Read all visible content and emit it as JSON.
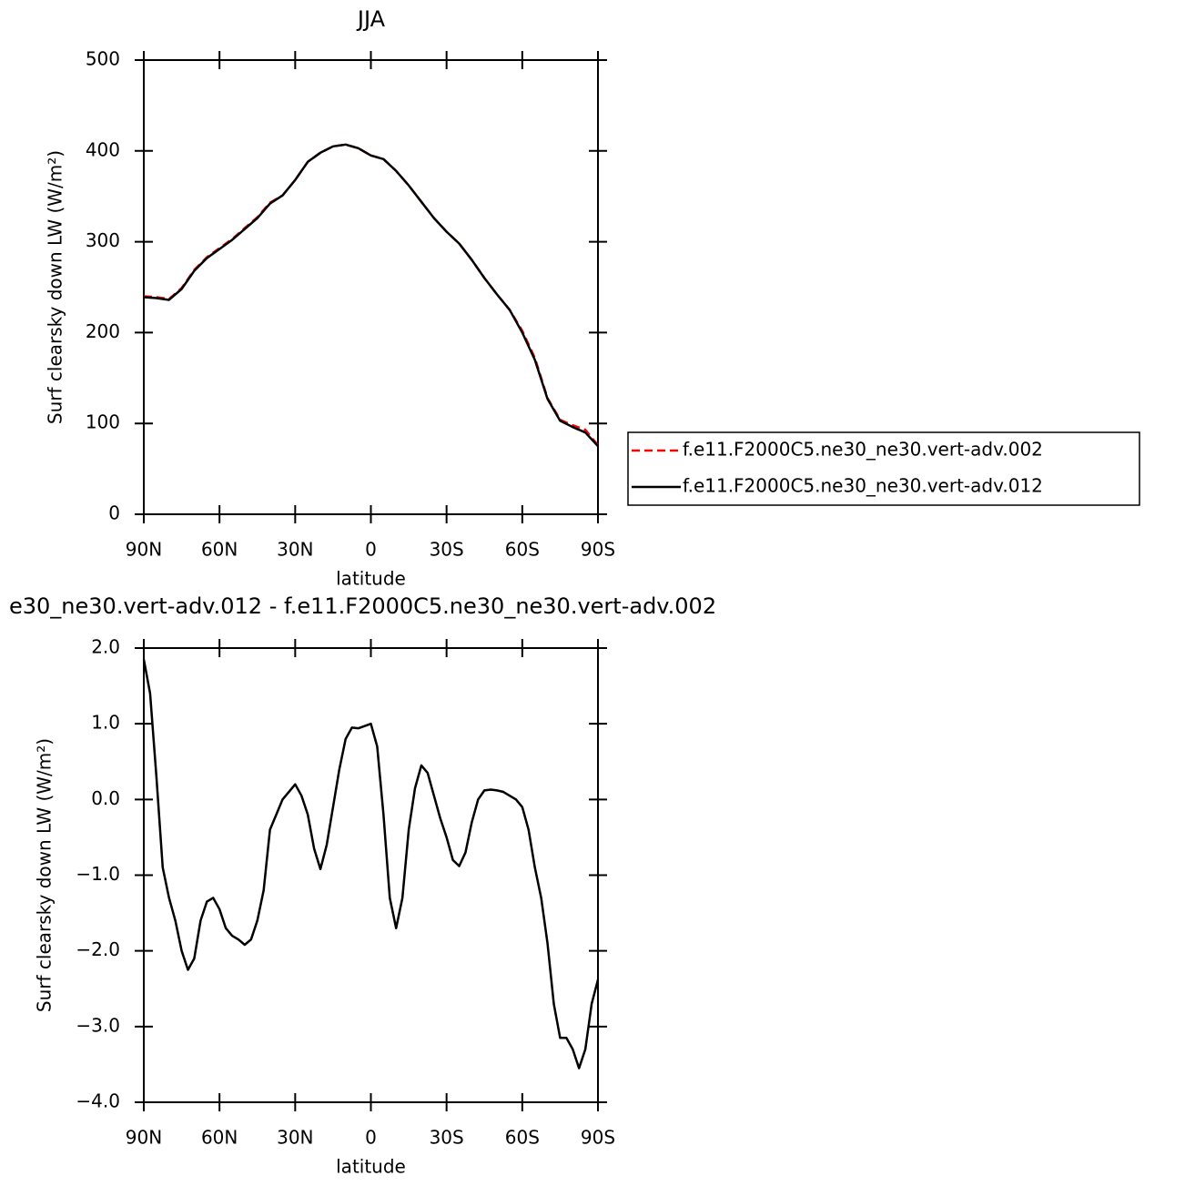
{
  "chart_data": [
    {
      "type": "line",
      "title": "JJA",
      "xlabel": "latitude",
      "ylabel": "Surf clearsky down LW (W/m²)",
      "x": [
        90,
        85,
        80,
        75,
        70,
        65,
        60,
        55,
        50,
        45,
        40,
        35,
        30,
        25,
        20,
        15,
        10,
        5,
        0,
        -5,
        -10,
        -15,
        -20,
        -25,
        -30,
        -35,
        -40,
        -45,
        -50,
        -55,
        -60,
        -65,
        -70,
        -75,
        -80,
        -85,
        -90
      ],
      "xlim": [
        90,
        -90
      ],
      "xticks": [
        {
          "value": 90,
          "label": "90N"
        },
        {
          "value": 60,
          "label": "60N"
        },
        {
          "value": 30,
          "label": "30N"
        },
        0,
        {
          "value": -30,
          "label": "30S"
        },
        {
          "value": -60,
          "label": "60S"
        },
        {
          "value": -90,
          "label": "90S"
        }
      ],
      "ylim": [
        0,
        500
      ],
      "yticks": [
        0,
        100,
        200,
        300,
        400,
        500
      ],
      "legend": "right",
      "series": [
        {
          "name": "f.e11.F2000C5.ne30_ne30.vert-adv.002",
          "color": "#ff0000",
          "style": "dashed",
          "values": [
            240,
            239,
            237,
            249,
            269,
            283,
            293,
            303,
            315,
            327,
            343,
            351,
            368,
            388,
            398,
            405,
            407,
            403,
            395,
            391,
            378,
            362,
            344,
            326,
            311,
            298,
            280,
            260,
            242,
            225,
            202,
            172,
            128,
            104,
            98,
            93,
            76
          ]
        },
        {
          "name": "f.e11.F2000C5.ne30_ne30.vert-adv.012",
          "color": "#000000",
          "style": "solid",
          "values": [
            239,
            238,
            236,
            248,
            268,
            282,
            292,
            302,
            314,
            326,
            342,
            351,
            368,
            388,
            398,
            405,
            407,
            403,
            395,
            391,
            378,
            362,
            344,
            326,
            311,
            298,
            280,
            260,
            242,
            225,
            200,
            170,
            127,
            103,
            96,
            90,
            75
          ]
        }
      ]
    },
    {
      "type": "line",
      "title": "e30_ne30.vert-adv.012 - f.e11.F2000C5.ne30_ne30.vert-adv.002",
      "xlabel": "latitude",
      "ylabel": "Surf clearsky down LW (W/m²)",
      "x": [
        90,
        87.5,
        85,
        82.5,
        80,
        77.5,
        75,
        72.5,
        70,
        67.5,
        65,
        62.5,
        60,
        57.5,
        55,
        52.5,
        50,
        47.5,
        45,
        42.5,
        40,
        37.5,
        35,
        32.5,
        30,
        27.5,
        25,
        22.5,
        20,
        17.5,
        15,
        12.5,
        10,
        7.5,
        5,
        2.5,
        0,
        -2.5,
        -5,
        -7.5,
        -10,
        -12.5,
        -15,
        -17.5,
        -20,
        -22.5,
        -25,
        -27.5,
        -30,
        -32.5,
        -35,
        -37.5,
        -40,
        -42.5,
        -45,
        -47.5,
        -50,
        -52.5,
        -55,
        -57.5,
        -60,
        -62.5,
        -65,
        -67.5,
        -70,
        -72.5,
        -75,
        -77.5,
        -80,
        -82.5,
        -85,
        -87.5,
        -90
      ],
      "xlim": [
        90,
        -90
      ],
      "xticks": [
        {
          "value": 90,
          "label": "90N"
        },
        {
          "value": 60,
          "label": "60N"
        },
        {
          "value": 30,
          "label": "30N"
        },
        0,
        {
          "value": -30,
          "label": "30S"
        },
        {
          "value": -60,
          "label": "60S"
        },
        {
          "value": -90,
          "label": "90S"
        }
      ],
      "ylim": [
        -4,
        2
      ],
      "yticks": [
        {
          "value": -4,
          "label": "−4.0"
        },
        {
          "value": -3,
          "label": "−3.0"
        },
        {
          "value": -2,
          "label": "−2.0"
        },
        {
          "value": -1,
          "label": "−1.0"
        },
        {
          "value": 0,
          "label": "0.0"
        },
        {
          "value": 1,
          "label": "1.0"
        },
        {
          "value": 2,
          "label": "2.0"
        }
      ],
      "series": [
        {
          "color": "#000000",
          "style": "solid",
          "values": [
            1.85,
            1.4,
            0.3,
            -0.9,
            -1.3,
            -1.6,
            -2.0,
            -2.25,
            -2.1,
            -1.6,
            -1.35,
            -1.3,
            -1.45,
            -1.7,
            -1.8,
            -1.85,
            -1.92,
            -1.85,
            -1.6,
            -1.2,
            -0.4,
            -0.2,
            0.0,
            0.1,
            0.2,
            0.05,
            -0.2,
            -0.65,
            -0.92,
            -0.6,
            -0.1,
            0.4,
            0.8,
            0.95,
            0.94,
            0.97,
            1.0,
            0.7,
            -0.2,
            -1.3,
            -1.7,
            -1.3,
            -0.4,
            0.15,
            0.45,
            0.35,
            0.05,
            -0.25,
            -0.5,
            -0.8,
            -0.88,
            -0.7,
            -0.3,
            0.0,
            0.12,
            0.13,
            0.12,
            0.1,
            0.05,
            0.0,
            -0.1,
            -0.4,
            -0.9,
            -1.3,
            -1.9,
            -2.7,
            -3.15,
            -3.15,
            -3.3,
            -3.55,
            -3.3,
            -2.7,
            -2.38
          ]
        }
      ]
    }
  ]
}
